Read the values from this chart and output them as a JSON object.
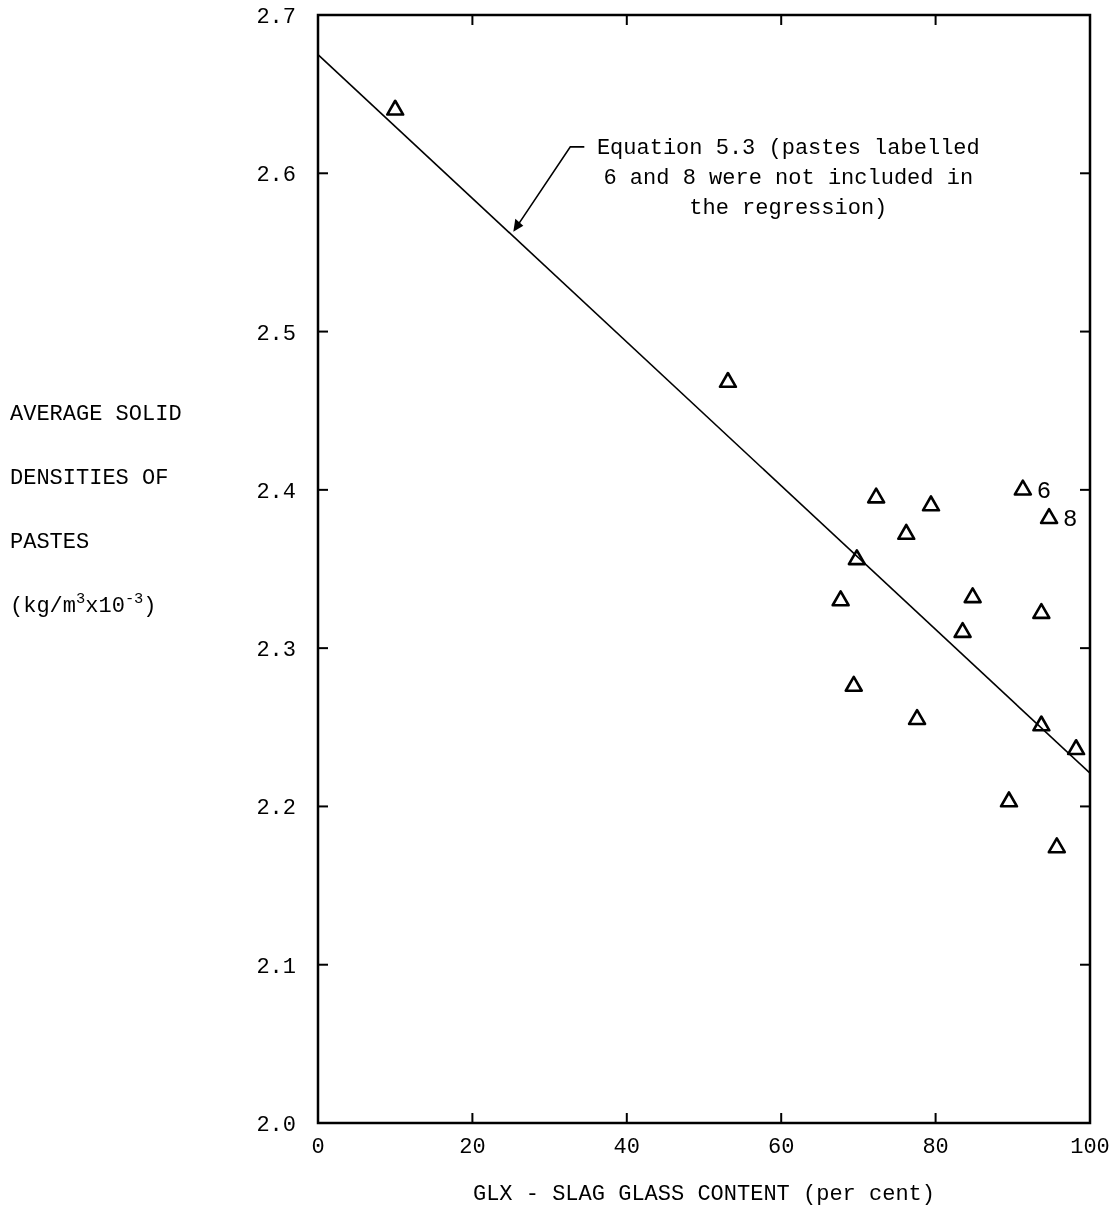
{
  "chart_data": {
    "type": "scatter",
    "xlabel": "GLX - SLAG GLASS CONTENT (per cent)",
    "ylabel": "AVERAGE SOLID\nDENSITIES OF\nPASTES\n(kg/m$^{3}$x10$^{-3}$)",
    "xlim": [
      0,
      100
    ],
    "ylim": [
      2.0,
      2.7
    ],
    "xticks": [
      0,
      20,
      40,
      60,
      80,
      100
    ],
    "yticks": [
      {
        "value": 2.0,
        "label": "2.0"
      },
      {
        "value": 2.1,
        "label": "2.1"
      },
      {
        "value": 2.2,
        "label": "2.2"
      },
      {
        "value": 2.3,
        "label": "2.3"
      },
      {
        "value": 2.4,
        "label": "2.4"
      },
      {
        "value": 2.5,
        "label": "2.5"
      },
      {
        "value": 2.6,
        "label": "2.6"
      },
      {
        "value": 2.7,
        "label": "2.7"
      }
    ],
    "series": [
      {
        "marker": "triangle",
        "color": "#000000",
        "x": [
          10,
          53.1,
          72.3,
          79.4,
          76.2,
          69.8,
          67.7,
          84.8,
          83.5,
          93.7,
          69.4,
          77.6,
          93.7,
          98.2,
          89.5,
          95.7,
          91.3,
          94.7
        ],
        "values": [
          2.64,
          2.468,
          2.395,
          2.39,
          2.372,
          2.356,
          2.33,
          2.332,
          2.31,
          2.322,
          2.276,
          2.255,
          2.251,
          2.236,
          2.203,
          2.174,
          2.4,
          2.382
        ]
      },
      {
        "type": "line",
        "marker": "none",
        "line_style": "solid",
        "color": "#000000",
        "x": [
          0,
          100
        ],
        "values": [
          2.675,
          2.221
        ]
      }
    ],
    "annotations": [
      {
        "text": "Equation 5.3 (pastes labelled\n6 and 8 were not included in\nthe regression)",
        "x": 25.3,
        "y": 2.563
      },
      {
        "text": "6",
        "x": 91.3,
        "y": 2.4
      },
      {
        "text": "8",
        "x": 94.7,
        "y": 2.382
      }
    ]
  }
}
